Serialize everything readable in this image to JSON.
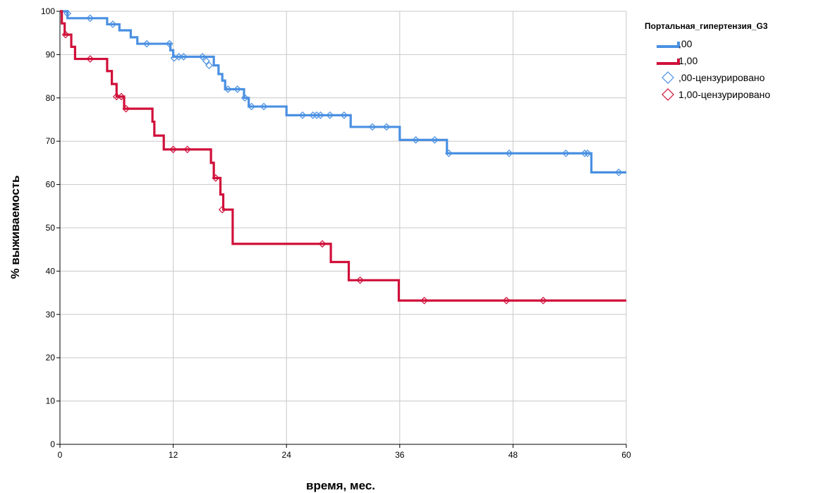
{
  "chart_data": {
    "type": "line",
    "subtype": "kaplan-meier step",
    "xlabel": "время, мес.",
    "ylabel": "% выживаемость",
    "xlim": [
      0,
      60
    ],
    "ylim": [
      0,
      100
    ],
    "xticks": [
      0,
      12,
      24,
      36,
      48,
      60
    ],
    "yticks": [
      0,
      10,
      20,
      30,
      40,
      50,
      60,
      70,
      80,
      90,
      100
    ],
    "grid": "vertical lines at x ticks, horizontal lines at y ticks",
    "legend": {
      "placement": "right",
      "title": "Портальная_гипертензия_G3",
      "entries": [
        {
          "label": ",00",
          "kind": "line",
          "series": 0
        },
        {
          "label": "1,00",
          "kind": "line",
          "series": 1
        },
        {
          "label": ",00-цензурировано",
          "kind": "censor",
          "series": 0
        },
        {
          "label": "1,00-цензурировано",
          "kind": "censor",
          "series": 1
        }
      ]
    },
    "series": [
      {
        "color": "#4a90e2",
        "steps": [
          [
            0,
            100
          ],
          [
            0.8,
            98.4
          ],
          [
            5,
            97
          ],
          [
            6.3,
            95.6
          ],
          [
            7.5,
            94
          ],
          [
            8.2,
            92.5
          ],
          [
            11.7,
            91
          ],
          [
            12,
            89.5
          ],
          [
            16.3,
            87.5
          ],
          [
            16.8,
            85.5
          ],
          [
            17.2,
            84
          ],
          [
            17.5,
            82
          ],
          [
            19.5,
            80
          ],
          [
            20,
            78
          ],
          [
            24,
            76
          ],
          [
            30.8,
            73.3
          ],
          [
            36,
            70.3
          ],
          [
            41,
            67.2
          ],
          [
            56.3,
            62.8
          ]
        ],
        "end_x": 60,
        "censored": [
          [
            0.8,
            99.5
          ],
          [
            3.2,
            98.4
          ],
          [
            5.6,
            97
          ],
          [
            9.2,
            92.5
          ],
          [
            11.6,
            92.5
          ],
          [
            12.1,
            89.2
          ],
          [
            12.6,
            89.5
          ],
          [
            13.1,
            89.5
          ],
          [
            15.1,
            89.5
          ],
          [
            15.5,
            88.5
          ],
          [
            15.8,
            87.5
          ],
          [
            17.8,
            82
          ],
          [
            18.8,
            82
          ],
          [
            19.6,
            80
          ],
          [
            20.3,
            78
          ],
          [
            21.6,
            78
          ],
          [
            25.7,
            76
          ],
          [
            26.8,
            76
          ],
          [
            27.2,
            76
          ],
          [
            27.6,
            76
          ],
          [
            28.6,
            76
          ],
          [
            30.1,
            76
          ],
          [
            33.1,
            73.3
          ],
          [
            34.6,
            73.3
          ],
          [
            37.7,
            70.3
          ],
          [
            39.7,
            70.3
          ],
          [
            41.2,
            67.2
          ],
          [
            47.6,
            67.2
          ],
          [
            53.6,
            67.2
          ],
          [
            55.6,
            67.2
          ],
          [
            55.9,
            67.2
          ],
          [
            59.2,
            62.8
          ]
        ]
      },
      {
        "color": "#d0103a",
        "steps": [
          [
            0,
            100
          ],
          [
            0.2,
            97.2
          ],
          [
            0.5,
            94.6
          ],
          [
            1.2,
            91.8
          ],
          [
            1.6,
            89
          ],
          [
            5,
            86.2
          ],
          [
            5.5,
            83.2
          ],
          [
            6,
            80.3
          ],
          [
            6.8,
            77.5
          ],
          [
            9.8,
            74.5
          ],
          [
            10,
            71.3
          ],
          [
            11,
            68.1
          ],
          [
            16,
            65
          ],
          [
            16.3,
            61.5
          ],
          [
            17,
            57.7
          ],
          [
            17.3,
            54.2
          ],
          [
            18.3,
            46.3
          ],
          [
            28.7,
            42.1
          ],
          [
            30.6,
            37.9
          ],
          [
            35.9,
            33.2
          ]
        ],
        "end_x": 60,
        "censored": [
          [
            0.6,
            94.6
          ],
          [
            3.2,
            89
          ],
          [
            6,
            80.3
          ],
          [
            6.5,
            80.3
          ],
          [
            7,
            77.5
          ],
          [
            12,
            68.1
          ],
          [
            13.5,
            68.1
          ],
          [
            16.5,
            61.5
          ],
          [
            17.2,
            54.2
          ],
          [
            27.8,
            46.3
          ],
          [
            31.8,
            37.9
          ],
          [
            38.6,
            33.2
          ],
          [
            47.3,
            33.2
          ],
          [
            51.2,
            33.2
          ]
        ]
      }
    ]
  }
}
